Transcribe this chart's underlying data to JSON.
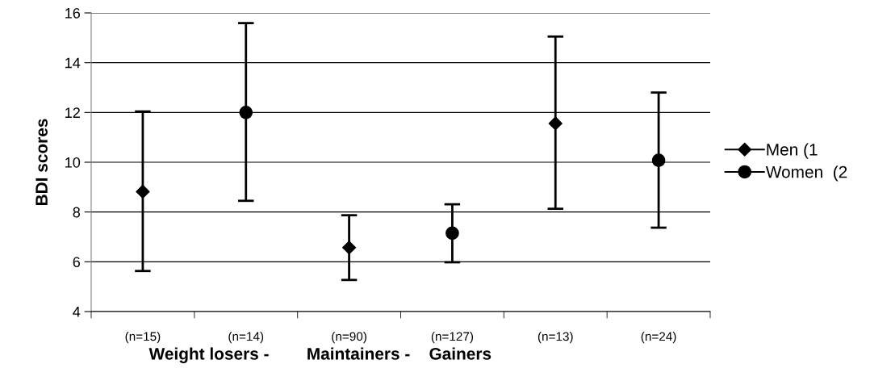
{
  "chart_data": {
    "type": "line",
    "ylabel": "BDI scores",
    "xlabel": "Weight losers -        Maintainers -    Gainers",
    "categories": [
      "(n=15)",
      "(n=14)",
      "(n=90)",
      "(n=127)",
      "(n=13)",
      "(n=24)"
    ],
    "series": [
      {
        "name": "Men (1",
        "color": "#000000",
        "marker": "diamond",
        "values": [
          8.82,
          null,
          6.57,
          null,
          11.56,
          null
        ],
        "errors": [
          [
            5.63,
            12.04
          ],
          null,
          [
            5.27,
            7.87
          ],
          null,
          [
            8.13,
            15.05
          ],
          null
        ]
      },
      {
        "name": "Women  (2",
        "color": "#000000",
        "marker": "circle",
        "values": [
          null,
          12.0,
          null,
          7.15,
          null,
          10.08
        ],
        "errors": [
          null,
          [
            8.45,
            15.59
          ],
          null,
          [
            5.98,
            8.31
          ],
          null,
          [
            7.37,
            12.8
          ]
        ]
      }
    ],
    "ylim": [
      4,
      16
    ],
    "yticks": [
      4,
      6,
      8,
      10,
      12,
      14,
      16
    ],
    "grid": "y",
    "legend": "right"
  }
}
